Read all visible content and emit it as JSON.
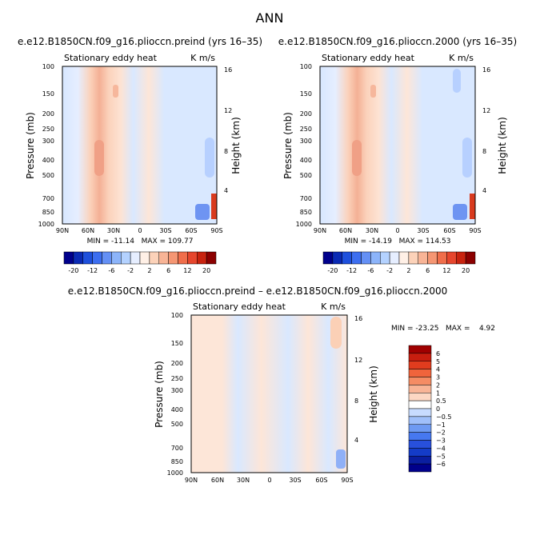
{
  "page_title": "ANN",
  "colors": {
    "strong_negative": "#00008b",
    "near_zero": "#d6e6ff",
    "light_positive": "#fcdcc9",
    "positive": "#f2a98c",
    "strong_positive": "#a00000"
  },
  "chart_data": [
    {
      "type": "heatmap",
      "title": "e.e12.B1850CN.f09_g16.pliocсn.preind (yrs 16–35)",
      "left_label": "Stationary eddy heat",
      "units": "K m/s",
      "ylabel": "Pressure (mb)",
      "ylabel_right": "Height (km)",
      "x_ticks": [
        "90N",
        "60N",
        "30N",
        "0",
        "30S",
        "60S",
        "90S"
      ],
      "y_ticks": [
        "100",
        "150",
        "200",
        "250",
        "300",
        "400",
        "500",
        "700",
        "850",
        "1000"
      ],
      "y_ticks_right": [
        "16",
        "12",
        "8",
        "4"
      ],
      "stats_text": "MIN = -11.14   MAX = 109.77",
      "min": -11.14,
      "max": 109.77
    },
    {
      "type": "heatmap",
      "title": "e.e12.B1850CN.f09_g16.pliocсn.2000 (yrs 16–35)",
      "left_label": "Stationary eddy heat",
      "units": "K m/s",
      "ylabel": "Pressure (mb)",
      "ylabel_right": "Height (km)",
      "x_ticks": [
        "90N",
        "60N",
        "30N",
        "0",
        "30S",
        "60S",
        "90S"
      ],
      "y_ticks": [
        "100",
        "150",
        "200",
        "250",
        "300",
        "400",
        "500",
        "700",
        "850",
        "1000"
      ],
      "y_ticks_right": [
        "16",
        "12",
        "8",
        "4"
      ],
      "stats_text": "MIN = -14.19   MAX = 114.53",
      "min": -14.19,
      "max": 114.53
    },
    {
      "type": "heatmap",
      "title": "e.e12.B1850CN.f09_g16.pliocсn.preind – e.e12.B1850CN.f09_g16.pliocсn.2000",
      "left_label": "Stationary eddy heat",
      "units": "K m/s",
      "ylabel": "Pressure (mb)",
      "ylabel_right": "Height (km)",
      "x_ticks": [
        "90N",
        "60N",
        "30N",
        "0",
        "30S",
        "60S",
        "90S"
      ],
      "y_ticks": [
        "100",
        "150",
        "200",
        "250",
        "300",
        "400",
        "500",
        "700",
        "850",
        "1000"
      ],
      "y_ticks_right": [
        "16",
        "12",
        "8",
        "4"
      ],
      "stats_text": "MIN = -23.25   MAX =    4.92",
      "min": -23.25,
      "max": 4.92
    }
  ],
  "colorbar_top": {
    "labels": [
      "-20",
      "-12",
      "-6",
      "-2",
      "2",
      "6",
      "12",
      "20"
    ],
    "colors": [
      "#00008b",
      "#0a2ab4",
      "#1e50dc",
      "#3c6ef0",
      "#6490f5",
      "#8cb4fa",
      "#b4d2ff",
      "#e6eeff",
      "#fff0e6",
      "#fcd2b9",
      "#f8b496",
      "#f59673",
      "#f06e4b",
      "#e6462d",
      "#c8230f",
      "#8b0000"
    ]
  },
  "colorbar_bottom": {
    "labels": [
      "6",
      "5",
      "4",
      "3",
      "2",
      "1",
      "0.5",
      "0",
      "−0.5",
      "−1",
      "−2",
      "−3",
      "−4",
      "−5",
      "−6"
    ],
    "colors": [
      "#a00000",
      "#c81e0f",
      "#e13c1e",
      "#f0643c",
      "#f58c64",
      "#f8b496",
      "#fcd7c3",
      "#ffffff",
      "#c8dcff",
      "#a0c0fa",
      "#6e9af2",
      "#4678f0",
      "#2850dc",
      "#143cc8",
      "#0a1ea0",
      "#00008b"
    ]
  }
}
